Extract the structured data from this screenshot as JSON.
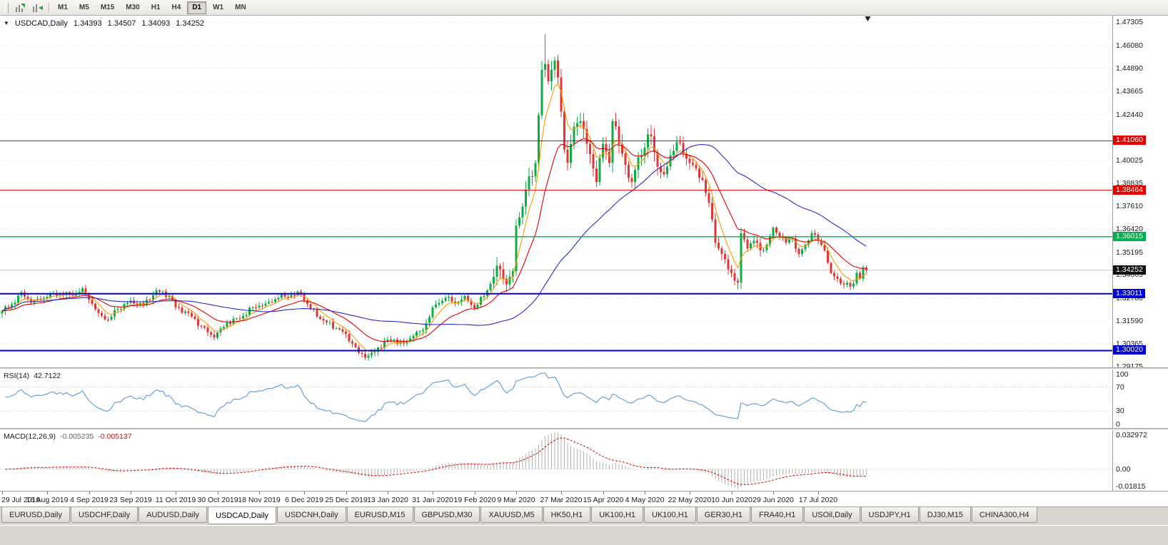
{
  "toolbar": {
    "timeframes": [
      "M1",
      "M5",
      "M15",
      "M30",
      "H1",
      "H4",
      "D1",
      "W1",
      "MN"
    ],
    "active_timeframe_index": 6,
    "icons": [
      "chart-scroll-icon",
      "chart-shift-icon"
    ]
  },
  "chart": {
    "header": {
      "symbol_period": "USDCAD,Daily",
      "open": "1.34393",
      "high": "1.34507",
      "low": "1.34093",
      "close": "1.34252"
    },
    "price_axis_labels": [
      "1.47305",
      "1.46080",
      "1.44890",
      "1.43665",
      "1.42440",
      "1.40025",
      "1.38835",
      "1.37610",
      "1.36420",
      "1.35195",
      "1.34005",
      "1.32780",
      "1.31590",
      "1.30365",
      "1.29175"
    ],
    "badges": [
      {
        "value": "1.41060",
        "color": "#e60000"
      },
      {
        "value": "1.38464",
        "color": "#e60000"
      },
      {
        "value": "1.36015",
        "color": "#00b050"
      },
      {
        "value": "1.34252",
        "color": "#111111"
      },
      {
        "value": "1.33011",
        "color": "#0000d8"
      },
      {
        "value": "1.30020",
        "color": "#0000d8"
      }
    ]
  },
  "rsi": {
    "label": "RSI(14)",
    "value": "42.7122",
    "axis_labels": [
      "100",
      "70",
      "30",
      "0"
    ]
  },
  "macd": {
    "label": "MACD(12,26,9)",
    "value_main": "-0.005235",
    "value_signal": "-0.005137",
    "axis_labels": [
      "0.032972",
      "0.00",
      "-0.01815"
    ]
  },
  "tabs": [
    "EURUSD,Daily",
    "USDCHF,Daily",
    "AUDUSD,Daily",
    "USDCAD,Daily",
    "USDCNH,Daily",
    "EURUSD,M15",
    "GBPUSD,M30",
    "XAUUSD,M5",
    "HK50,H1",
    "UK100,H1",
    "UK100,H1",
    "GER30,H1",
    "FRA40,H1",
    "USOil,Daily",
    "USDJPY,H1",
    "DJ30,M15",
    "CHINA300,H4"
  ],
  "active_tab_index": 3,
  "chart_data": {
    "type": "candlestick",
    "symbol": "USDCAD",
    "timeframe": "Daily",
    "ohlc_last": {
      "open": 1.34393,
      "high": 1.34507,
      "low": 1.34093,
      "close": 1.34252
    },
    "current_price": 1.34252,
    "num_candles": 270,
    "y_range": [
      1.291,
      1.4765
    ],
    "x_axis": {
      "labels": [
        "29 Jul 2019",
        "16 Aug 2019",
        "4 Sep 2019",
        "23 Sep 2019",
        "11 Oct 2019",
        "30 Oct 2019",
        "18 Nov 2019",
        "6 Dec 2019",
        "25 Dec 2019",
        "13 Jan 2020",
        "31 Jan 2020",
        "19 Feb 2020",
        "9 Mar 2020",
        "27 Mar 2020",
        "15 Apr 2020",
        "4 May 2020",
        "22 May 2020",
        "10 Jun 2020",
        "29 Jun 2020",
        "17 Jul 2020"
      ],
      "candle_indices": [
        0,
        14,
        27,
        40,
        54,
        67,
        80,
        94,
        107,
        120,
        134,
        147,
        160,
        174,
        187,
        200,
        214,
        227,
        240,
        254
      ]
    },
    "close_keyframes": [
      [
        0,
        1.321
      ],
      [
        3,
        1.3245
      ],
      [
        6,
        1.331
      ],
      [
        9,
        1.3255
      ],
      [
        12,
        1.327
      ],
      [
        14,
        1.3285
      ],
      [
        18,
        1.3305
      ],
      [
        22,
        1.329
      ],
      [
        25,
        1.333
      ],
      [
        27,
        1.327
      ],
      [
        30,
        1.32
      ],
      [
        33,
        1.3165
      ],
      [
        36,
        1.322
      ],
      [
        40,
        1.3265
      ],
      [
        44,
        1.324
      ],
      [
        48,
        1.332
      ],
      [
        52,
        1.329
      ],
      [
        54,
        1.323
      ],
      [
        58,
        1.32
      ],
      [
        62,
        1.313
      ],
      [
        66,
        1.307
      ],
      [
        70,
        1.315
      ],
      [
        74,
        1.317
      ],
      [
        78,
        1.323
      ],
      [
        82,
        1.325
      ],
      [
        86,
        1.328
      ],
      [
        90,
        1.3295
      ],
      [
        93,
        1.33
      ],
      [
        96,
        1.322
      ],
      [
        100,
        1.316
      ],
      [
        104,
        1.312
      ],
      [
        107,
        1.309
      ],
      [
        109,
        1.304
      ],
      [
        111,
        1.299
      ],
      [
        113,
        1.2965
      ],
      [
        116,
        1.2995
      ],
      [
        119,
        1.305
      ],
      [
        122,
        1.306
      ],
      [
        125,
        1.304
      ],
      [
        128,
        1.308
      ],
      [
        131,
        1.311
      ],
      [
        134,
        1.323
      ],
      [
        138,
        1.328
      ],
      [
        141,
        1.325
      ],
      [
        144,
        1.329
      ],
      [
        147,
        1.3225
      ],
      [
        150,
        1.329
      ],
      [
        153,
        1.339
      ],
      [
        155,
        1.343
      ],
      [
        157,
        1.335
      ],
      [
        159,
        1.342
      ],
      [
        160,
        1.366
      ],
      [
        162,
        1.376
      ],
      [
        164,
        1.392
      ],
      [
        166,
        1.399
      ],
      [
        167,
        1.424
      ],
      [
        168,
        1.448
      ],
      [
        169,
        1.451
      ],
      [
        170,
        1.442
      ],
      [
        171,
        1.448
      ],
      [
        172,
        1.453
      ],
      [
        173,
        1.444
      ],
      [
        174,
        1.426
      ],
      [
        175,
        1.406
      ],
      [
        176,
        1.399
      ],
      [
        177,
        1.409
      ],
      [
        178,
        1.418
      ],
      [
        180,
        1.421
      ],
      [
        182,
        1.409
      ],
      [
        184,
        1.396
      ],
      [
        185,
        1.389
      ],
      [
        187,
        1.409
      ],
      [
        189,
        1.399
      ],
      [
        190,
        1.421
      ],
      [
        192,
        1.409
      ],
      [
        194,
        1.398
      ],
      [
        196,
        1.389
      ],
      [
        198,
        1.402
      ],
      [
        200,
        1.407
      ],
      [
        202,
        1.413
      ],
      [
        204,
        1.397
      ],
      [
        206,
        1.393
      ],
      [
        208,
        1.403
      ],
      [
        210,
        1.41
      ],
      [
        212,
        1.404
      ],
      [
        214,
        1.399
      ],
      [
        216,
        1.396
      ],
      [
        218,
        1.39
      ],
      [
        220,
        1.378
      ],
      [
        222,
        1.357
      ],
      [
        224,
        1.351
      ],
      [
        226,
        1.343
      ],
      [
        227,
        1.341
      ],
      [
        228,
        1.337
      ],
      [
        229,
        1.336
      ],
      [
        230,
        1.362
      ],
      [
        232,
        1.354
      ],
      [
        234,
        1.358
      ],
      [
        236,
        1.353
      ],
      [
        238,
        1.356
      ],
      [
        240,
        1.365
      ],
      [
        242,
        1.36
      ],
      [
        244,
        1.357
      ],
      [
        246,
        1.359
      ],
      [
        248,
        1.351
      ],
      [
        250,
        1.356
      ],
      [
        252,
        1.362
      ],
      [
        254,
        1.358
      ],
      [
        256,
        1.353
      ],
      [
        258,
        1.341
      ],
      [
        260,
        1.338
      ],
      [
        262,
        1.335
      ],
      [
        264,
        1.334
      ],
      [
        265,
        1.3355
      ],
      [
        266,
        1.3412
      ],
      [
        267,
        1.338
      ],
      [
        268,
        1.34393
      ],
      [
        269,
        1.34252
      ]
    ],
    "extremes": {
      "peak_index": 169,
      "peak_high": 1.4668,
      "trough_index": 113,
      "trough_low": 1.2952
    },
    "hlines": [
      {
        "price": 1.4106,
        "color": "#e60000",
        "width": 1
      },
      {
        "price": 1.38464,
        "color": "#e60000",
        "width": 1
      },
      {
        "price": 1.36015,
        "color": "#00b050",
        "width": 1.3
      },
      {
        "price": 1.33011,
        "color": "#0000d8",
        "width": 2
      },
      {
        "price": 1.3002,
        "color": "#0000d8",
        "width": 2
      }
    ],
    "ma_overlays": [
      {
        "type": "ema",
        "period": 6,
        "color": "#ff9900"
      },
      {
        "type": "ema",
        "period": 18,
        "color": "#e00000"
      },
      {
        "type": "sma",
        "period": 55,
        "color": "#2a2ac8"
      }
    ],
    "candle_colors": {
      "up": "#0ead46",
      "down": "#e03636"
    },
    "rsi": {
      "period": 14,
      "current": 42.7122,
      "color": "#5b9bd5",
      "levels": [
        70,
        30
      ],
      "scale": [
        0,
        100
      ]
    },
    "macd": {
      "fast": 12,
      "slow": 26,
      "signal": 9,
      "current_main": -0.005235,
      "current_signal": -0.005137,
      "scale": [
        -0.01815,
        0.032972
      ],
      "histogram_color": "#b0b0b0",
      "signal_color": "#e00000"
    }
  }
}
